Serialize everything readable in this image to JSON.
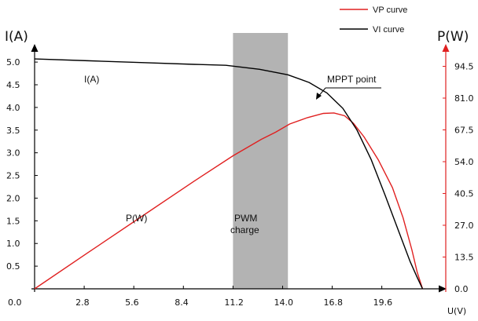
{
  "chart_data": {
    "type": "line",
    "xlabel": "U(V)",
    "ylabel_left": "I(A)",
    "ylabel_right": "P(W)",
    "xlim": [
      0,
      22.9
    ],
    "ylim_left": [
      0,
      5.4
    ],
    "ylim_right": [
      0,
      104
    ],
    "x_ticks": [
      "0.0",
      "2.8",
      "5.6",
      "8.4",
      "11.2",
      "14.0",
      "16.8",
      "19.6"
    ],
    "y_left_ticks": [
      "0.5",
      "1.0",
      "1.5",
      "2.0",
      "2.5",
      "3.0",
      "3.5",
      "4.0",
      "4.5",
      "5.0"
    ],
    "y_right_ticks": [
      "0.0",
      "13.5",
      "27.0",
      "40.5",
      "54.0",
      "67.5",
      "81.0",
      "94.5"
    ],
    "series": [
      {
        "name": "VI curve",
        "axis": "left",
        "color": "#000000",
        "x": [
          0,
          3,
          6,
          9,
          10.8,
          12.7,
          14.3,
          15.5,
          16.5,
          17.4,
          18.2,
          19.0,
          19.8,
          20.6,
          21.2,
          21.6,
          21.9
        ],
        "y": [
          5.07,
          5.03,
          4.99,
          4.95,
          4.93,
          4.84,
          4.72,
          4.55,
          4.32,
          3.98,
          3.5,
          2.85,
          2.05,
          1.22,
          0.6,
          0.25,
          0.0
        ]
      },
      {
        "name": "VP curve",
        "axis": "right",
        "color": "#e02020",
        "x": [
          0,
          3,
          6,
          9,
          11.2,
          12.8,
          13.6,
          14.4,
          15.4,
          16.3,
          16.9,
          17.5,
          18.0,
          18.6,
          19.4,
          20.2,
          20.8,
          21.3,
          21.6,
          21.9
        ],
        "y": [
          0,
          15.3,
          30.5,
          45.7,
          56.5,
          63.5,
          66.5,
          70.0,
          72.7,
          74.5,
          74.7,
          73.5,
          70.3,
          64.5,
          54.8,
          43.0,
          30.2,
          16.5,
          7.0,
          0
        ]
      }
    ],
    "annotations": {
      "mppt": "MPPT point",
      "pwm_line1": "PWM",
      "pwm_line2": "charge",
      "i_label": "I(A)",
      "p_label": "P(W)"
    },
    "pwm_region": [
      11.2,
      14.3
    ],
    "legend_position": "top-right"
  }
}
